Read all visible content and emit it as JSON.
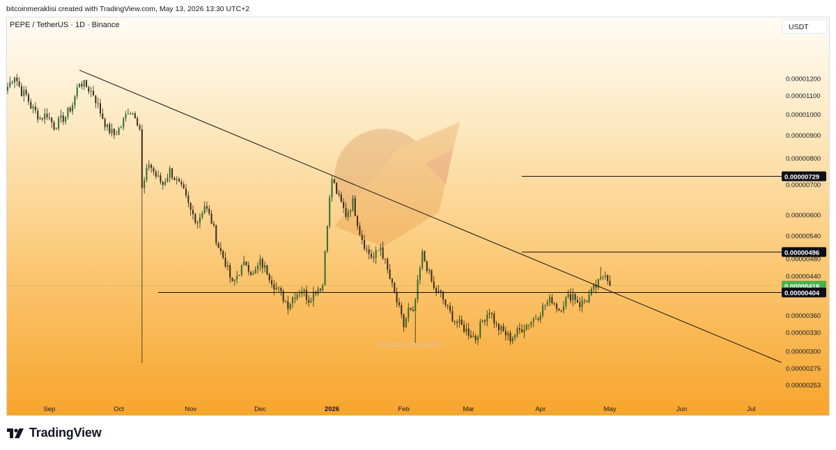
{
  "header": {
    "attribution": "bitcoinmeraklisi created with TradingView.com, May 13, 2026 13:30 UTC+2"
  },
  "chart_data": {
    "type": "candlestick",
    "symbol_line": "PEPE / TetherUS · 1D · Binance",
    "currency_button": "USDT",
    "y_scale": "log",
    "ylim": [
      2.458e-06,
      1.37e-05
    ],
    "y_ticks": [
      {
        "label": "0.00001200",
        "value": 1.2e-05
      },
      {
        "label": "0.00001100",
        "value": 1.1e-05
      },
      {
        "label": "0.00001000",
        "value": 1e-05
      },
      {
        "label": "0.00000900",
        "value": 9e-06
      },
      {
        "label": "0.00000800",
        "value": 8e-06
      },
      {
        "label": "0.00000700",
        "value": 7e-06
      },
      {
        "label": "0.00000600",
        "value": 6e-06
      },
      {
        "label": "0.00000540",
        "value": 5.4e-06
      },
      {
        "label": "0.00000480",
        "value": 4.8e-06
      },
      {
        "label": "0.00000440",
        "value": 4.4e-06
      },
      {
        "label": "0.00000360",
        "value": 3.6e-06
      },
      {
        "label": "0.00000330",
        "value": 3.3e-06
      },
      {
        "label": "0.00000300",
        "value": 3e-06
      },
      {
        "label": "0.00000275",
        "value": 2.75e-06
      },
      {
        "label": "0.00000253",
        "value": 2.53e-06
      }
    ],
    "x_labels": [
      {
        "label": "Sep",
        "day": 18,
        "bold": false
      },
      {
        "label": "Oct",
        "day": 48,
        "bold": false
      },
      {
        "label": "Nov",
        "day": 79,
        "bold": false
      },
      {
        "label": "Dec",
        "day": 109,
        "bold": false
      },
      {
        "label": "2026",
        "day": 140,
        "bold": true
      },
      {
        "label": "Feb",
        "day": 171,
        "bold": false
      },
      {
        "label": "Mar",
        "day": 199,
        "bold": false
      },
      {
        "label": "Apr",
        "day": 230,
        "bold": false
      },
      {
        "label": "May",
        "day": 260,
        "bold": false
      },
      {
        "label": "Jun",
        "day": 291,
        "bold": false
      },
      {
        "label": "Jul",
        "day": 321,
        "bold": false
      }
    ],
    "x_range_days": [
      0,
      334
    ],
    "price_labels": [
      {
        "label": "0.00000729",
        "value": 7.29e-06,
        "kind": "level"
      },
      {
        "label": "0.00000496",
        "value": 4.96e-06,
        "kind": "level"
      },
      {
        "label": "0.00000418",
        "value": 4.18e-06,
        "kind": "last"
      },
      {
        "label": "0.00000404",
        "value": 4.04e-06,
        "kind": "level"
      }
    ],
    "horizontal_levels": [
      {
        "value": 7.29e-06,
        "from_day": 222
      },
      {
        "value": 4.96e-06,
        "from_day": 222
      },
      {
        "value": 4.04e-06,
        "from_day": 65
      }
    ],
    "trendline": {
      "start": {
        "day": 31,
        "value": 1.25e-05
      },
      "end": {
        "day": 334,
        "value": 2.83e-06
      }
    },
    "watermark": "@bitcoinmeraklisi",
    "anchors": [
      [
        0,
        1.15e-05
      ],
      [
        3,
        1.22e-05
      ],
      [
        6,
        1.12e-05
      ],
      [
        8,
        1.1e-05
      ],
      [
        10,
        1.04e-05
      ],
      [
        14,
        9.8e-06
      ],
      [
        17,
        1e-05
      ],
      [
        20,
        9.4e-06
      ],
      [
        23,
        9.7e-06
      ],
      [
        25,
        9.9e-06
      ],
      [
        28,
        1.05e-05
      ],
      [
        31,
        1.18e-05
      ],
      [
        34,
        1.15e-05
      ],
      [
        37,
        1.11e-05
      ],
      [
        40,
        1.01e-05
      ],
      [
        43,
        9.3e-06
      ],
      [
        46,
        9e-06
      ],
      [
        49,
        9.4e-06
      ],
      [
        52,
        1.02e-05
      ],
      [
        55,
        1e-05
      ],
      [
        57,
        9.3e-06
      ],
      [
        58,
        6.8e-06
      ],
      [
        59,
        7.1e-06
      ],
      [
        61,
        7.8e-06
      ],
      [
        64,
        7.3e-06
      ],
      [
        67,
        7e-06
      ],
      [
        70,
        7.5e-06
      ],
      [
        73,
        7.1e-06
      ],
      [
        76,
        6.7e-06
      ],
      [
        79,
        6.1e-06
      ],
      [
        82,
        5.8e-06
      ],
      [
        85,
        6.3e-06
      ],
      [
        88,
        5.8e-06
      ],
      [
        91,
        5.1e-06
      ],
      [
        94,
        4.7e-06
      ],
      [
        97,
        4.2e-06
      ],
      [
        100,
        4.5e-06
      ],
      [
        103,
        4.7e-06
      ],
      [
        106,
        4.4e-06
      ],
      [
        109,
        4.7e-06
      ],
      [
        112,
        4.5e-06
      ],
      [
        115,
        4.2e-06
      ],
      [
        118,
        4e-06
      ],
      [
        121,
        3.8e-06
      ],
      [
        124,
        4e-06
      ],
      [
        127,
        4.1e-06
      ],
      [
        130,
        3.9e-06
      ],
      [
        133,
        4.1e-06
      ],
      [
        136,
        4.2e-06
      ],
      [
        137,
        5e-06
      ],
      [
        138,
        5.8e-06
      ],
      [
        140,
        7.2e-06
      ],
      [
        143,
        6.5e-06
      ],
      [
        146,
        6e-06
      ],
      [
        149,
        6.4e-06
      ],
      [
        152,
        5.5e-06
      ],
      [
        155,
        5e-06
      ],
      [
        158,
        4.8e-06
      ],
      [
        161,
        5.1e-06
      ],
      [
        164,
        4.5e-06
      ],
      [
        167,
        4e-06
      ],
      [
        169,
        3.7e-06
      ],
      [
        171,
        3.4e-06
      ],
      [
        173,
        3.7e-06
      ],
      [
        175,
        3.6e-06
      ],
      [
        177,
        4.2e-06
      ],
      [
        179,
        4.9e-06
      ],
      [
        181,
        4.6e-06
      ],
      [
        184,
        4.1e-06
      ],
      [
        187,
        4e-06
      ],
      [
        190,
        3.7e-06
      ],
      [
        193,
        3.5e-06
      ],
      [
        196,
        3.4e-06
      ],
      [
        199,
        3.3e-06
      ],
      [
        202,
        3.2e-06
      ],
      [
        205,
        3.5e-06
      ],
      [
        208,
        3.7e-06
      ],
      [
        211,
        3.4e-06
      ],
      [
        214,
        3.3e-06
      ],
      [
        217,
        3.2e-06
      ],
      [
        220,
        3.3e-06
      ],
      [
        223,
        3.4e-06
      ],
      [
        226,
        3.5e-06
      ],
      [
        229,
        3.6e-06
      ],
      [
        232,
        3.8e-06
      ],
      [
        235,
        3.9e-06
      ],
      [
        238,
        3.7e-06
      ],
      [
        241,
        3.9e-06
      ],
      [
        244,
        4e-06
      ],
      [
        247,
        3.8e-06
      ],
      [
        250,
        3.9e-06
      ],
      [
        253,
        4.1e-06
      ],
      [
        256,
        4.3e-06
      ],
      [
        258,
        4.5e-06
      ],
      [
        260,
        4.2e-06
      ]
    ]
  },
  "footer": {
    "brand": "TradingView"
  }
}
